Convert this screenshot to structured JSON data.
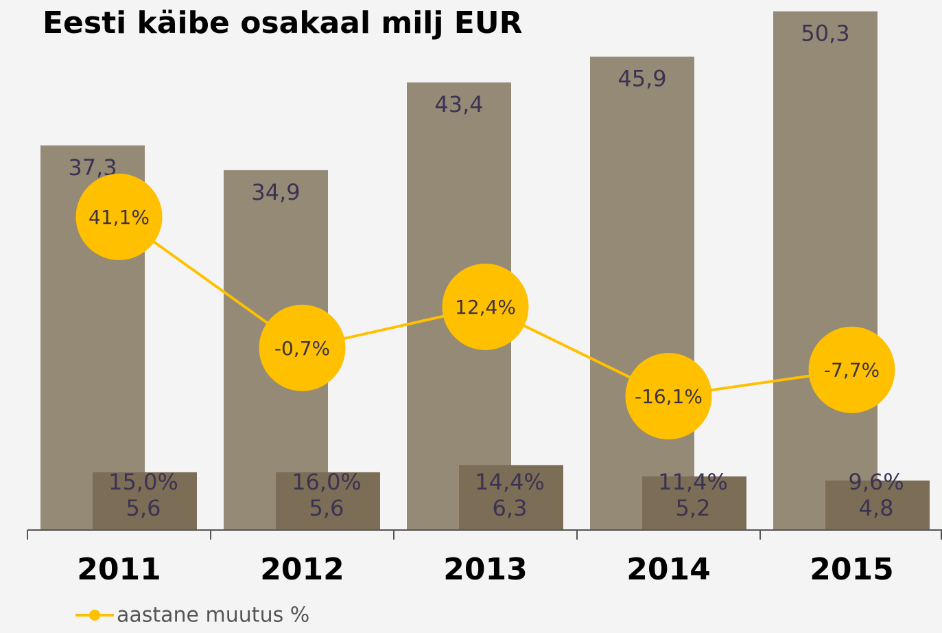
{
  "chart_data": {
    "type": "bar",
    "title": "Eesti käibe osakaal milj EUR",
    "categories": [
      "2011",
      "2012",
      "2013",
      "2014",
      "2015"
    ],
    "ylim": [
      0,
      51.4
    ],
    "y2lim": [
      -58.8,
      110.3
    ],
    "series": [
      {
        "color": "#948a76",
        "values": [
          37.3,
          34.9,
          43.4,
          45.9,
          50.3
        ],
        "value_labels": [
          "37,3",
          "34,9",
          "43,4",
          "45,9",
          "50,3"
        ]
      },
      {
        "color": "#7b6d56",
        "values": [
          5.6,
          5.6,
          6.3,
          5.2,
          4.8
        ],
        "value_labels": [
          "5,6",
          "5,6",
          "6,3",
          "5,2",
          "4,8"
        ],
        "percent_labels": [
          "15,0%",
          "16,0%",
          "14,4%",
          "11,4%",
          "9,6%"
        ]
      },
      {
        "name": "aastane muutus %",
        "type": "line",
        "axis": "y2",
        "color": "#ffc000",
        "values": [
          41.1,
          -0.7,
          12.4,
          -16.1,
          -7.7
        ],
        "value_labels": [
          "41,1%",
          "-0,7%",
          "12,4%",
          "-16,1%",
          "-7,7%"
        ]
      }
    ]
  }
}
